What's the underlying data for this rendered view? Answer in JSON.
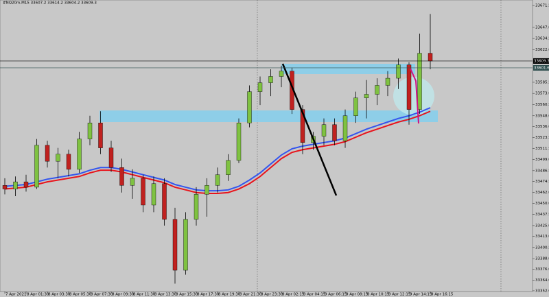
{
  "chart_data": {
    "type": "candlestick",
    "title": "#NQ20m,M15  33607.2 33614.2 33604.2 33609.3",
    "ylim": [
      33351.2,
      33677.6
    ],
    "yticks": [
      33671.5,
      {
        "value": 33647.0,
        "label": "33647.0"
      },
      33634.5,
      {
        "value": 33622.0,
        "label": "33622.0"
      },
      33585.5,
      {
        "value": 33573.0,
        "label": "33573.0"
      },
      33560.5,
      {
        "value": 33548.0,
        "label": "33548.0"
      },
      {
        "value": 33536.0,
        "label": "33536.0"
      },
      33523.5,
      33511.5,
      {
        "value": 33499.0,
        "label": "33499.0"
      },
      33486.5,
      33474.5,
      {
        "value": 33462.0,
        "label": "33462.0"
      },
      {
        "value": 33450.0,
        "label": "33450.0"
      },
      33437.5,
      {
        "value": 33425.0,
        "label": "33425.0"
      },
      {
        "value": 33413.0,
        "label": "33413.0"
      },
      33400.5,
      {
        "value": 33388.0,
        "label": "33388.0"
      },
      {
        "value": 33376.0,
        "label": "33376.0"
      },
      {
        "value": 33364.0,
        "label": "33364.0"
      },
      {
        "value": 33352.0,
        "label": "33352.0"
      }
    ],
    "price_lines": [
      {
        "value": 33609.3,
        "color": "#000000"
      },
      {
        "value": 33601.6,
        "color": "#2f4f4f"
      }
    ],
    "xlabels": [
      "7 Apr 2021",
      "8 Apr 01:30",
      "8 Apr 03:30",
      "8 Apr 05:30",
      "8 Apr 07:30",
      "8 Apr 09:30",
      "8 Apr 11:30",
      "8 Apr 13:30",
      "8 Apr 15:30",
      "8 Apr 17:30",
      "8 Apr 19:30",
      "8 Apr 21:30",
      "8 Apr 23:30",
      "9 Apr 02:15",
      "9 Apr 04:15",
      "9 Apr 06:15",
      "9 Apr 08:15",
      "9 Apr 10:15",
      "9 Apr 12:15",
      "9 Apr 14:15",
      "9 Apr 16:15"
    ],
    "up_color": "#7fc241",
    "down_color": "#c0211f",
    "open": [
      33470,
      33466,
      33474,
      33468,
      33515,
      33497,
      33505,
      33488,
      33522,
      33540,
      33512,
      33490,
      33470,
      33478,
      33448,
      33472,
      33432,
      33375,
      33432,
      33460,
      33470,
      33482,
      33498,
      33540,
      33575,
      33585,
      33592,
      33598,
      33555,
      33518,
      33525,
      33538,
      33520,
      33548,
      33568,
      33572,
      33582,
      33590,
      33605,
      33555,
      33618
    ],
    "high": [
      33478,
      33480,
      33482,
      33522,
      33520,
      33512,
      33510,
      33530,
      33548,
      33553,
      33520,
      33500,
      33488,
      33482,
      33480,
      33478,
      33445,
      33440,
      33468,
      33478,
      33490,
      33505,
      33545,
      33582,
      33592,
      33600,
      33604,
      33602,
      33560,
      33530,
      33545,
      33545,
      33555,
      33575,
      33588,
      33590,
      33598,
      33612,
      33608,
      33640,
      33662
    ],
    "low": [
      33460,
      33458,
      33463,
      33466,
      33490,
      33478,
      33480,
      33484,
      33515,
      33505,
      33485,
      33462,
      33455,
      33440,
      33440,
      33425,
      33360,
      33370,
      33425,
      33435,
      33462,
      33475,
      33495,
      33535,
      33560,
      33570,
      33580,
      33550,
      33505,
      33510,
      33515,
      33515,
      33512,
      33540,
      33545,
      33560,
      33570,
      33578,
      33538,
      33550,
      33600
    ],
    "close": [
      33466,
      33474,
      33468,
      33515,
      33497,
      33505,
      33488,
      33522,
      33540,
      33512,
      33490,
      33470,
      33478,
      33448,
      33472,
      33432,
      33375,
      33432,
      33460,
      33470,
      33482,
      33498,
      33540,
      33575,
      33585,
      33592,
      33598,
      33555,
      33518,
      33525,
      33538,
      33520,
      33548,
      33568,
      33572,
      33582,
      33590,
      33605,
      33555,
      33618,
      33609.3
    ],
    "series": [
      {
        "color": "#e8141c",
        "values": [
          33466,
          33467,
          33468,
          33471,
          33474,
          33476,
          33478,
          33480,
          33484,
          33487,
          33487,
          33485,
          33482,
          33479,
          33476,
          33473,
          33468,
          33465,
          33462,
          33461,
          33461,
          33462,
          33466,
          33472,
          33480,
          33490,
          33500,
          33507,
          33510,
          33512,
          33514,
          33516,
          33519,
          33524,
          33529,
          33533,
          33537,
          33541,
          33544,
          33548,
          33553
        ]
      },
      {
        "color": "#3355ee",
        "values": [
          33469,
          33470,
          33471,
          33474,
          33477,
          33479,
          33481,
          33483,
          33487,
          33490,
          33490,
          33488,
          33485,
          33482,
          33479,
          33476,
          33471,
          33468,
          33465,
          33464,
          33464,
          33465,
          33469,
          33476,
          33484,
          33494,
          33504,
          33511,
          33514,
          33516,
          33518,
          33520,
          33523,
          33528,
          33533,
          33537,
          33541,
          33545,
          33548,
          33552,
          33557
        ]
      }
    ]
  }
}
